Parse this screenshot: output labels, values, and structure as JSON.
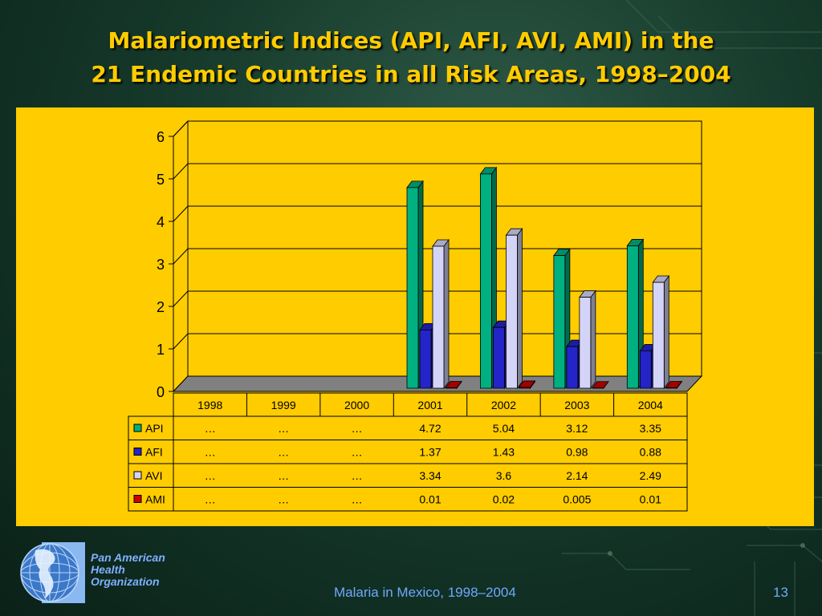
{
  "slide": {
    "title_line1": "Malariometric Indices (API, AFI, AVI, AMI) in the",
    "title_line2": "21 Endemic Countries in all Risk Areas, 1998–2004",
    "footer": "Malaria in Mexico, 1998–2004",
    "page_number": "13",
    "org_name_line1": "Pan American",
    "org_name_line2": "Health",
    "org_name_line3": "Organization"
  },
  "chart_data": {
    "type": "bar",
    "categories": [
      "1998",
      "1999",
      "2000",
      "2001",
      "2002",
      "2003",
      "2004"
    ],
    "ylim": [
      0,
      6
    ],
    "yticks": [
      "0",
      "1",
      "2",
      "3",
      "4",
      "5",
      "6"
    ],
    "grid": true,
    "series": [
      {
        "name": "API",
        "color": "#00b080",
        "values": [
          null,
          null,
          null,
          4.72,
          5.04,
          3.12,
          3.35
        ],
        "labels": [
          "…",
          "…",
          "…",
          "4.72",
          "5.04",
          "3.12",
          "3.35"
        ]
      },
      {
        "name": "AFI",
        "color": "#2424c8",
        "values": [
          null,
          null,
          null,
          1.37,
          1.43,
          0.98,
          0.88
        ],
        "labels": [
          "…",
          "…",
          "…",
          "1.37",
          "1.43",
          "0.98",
          "0.88"
        ]
      },
      {
        "name": "AVI",
        "color": "#d4d4f8",
        "values": [
          null,
          null,
          null,
          3.34,
          3.6,
          2.14,
          2.49
        ],
        "labels": [
          "…",
          "…",
          "…",
          "3.34",
          "3.6",
          "2.14",
          "2.49"
        ]
      },
      {
        "name": "AMI",
        "color": "#cc0000",
        "values": [
          null,
          null,
          null,
          0.01,
          0.02,
          0.005,
          0.01
        ],
        "labels": [
          "…",
          "…",
          "…",
          "0.01",
          "0.02",
          "0.005",
          "0.01"
        ]
      }
    ]
  }
}
